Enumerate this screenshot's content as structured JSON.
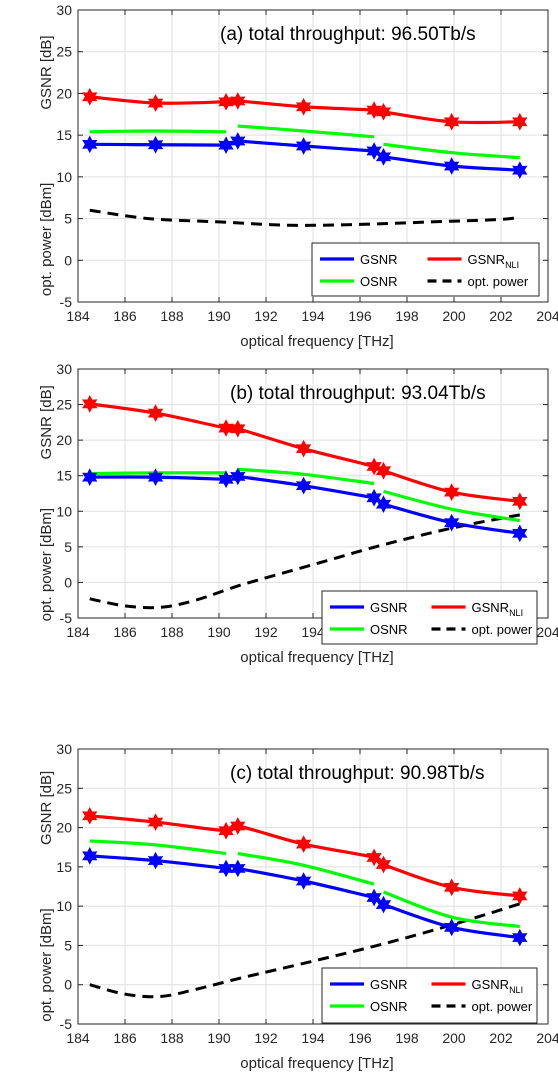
{
  "chart_data": [
    {
      "type": "line",
      "title": "(a) total throughput: 96.50Tb/s",
      "xlabel": "optical frequency [THz]",
      "ylabel_top": "GSNR [dB]",
      "ylabel_bottom": "opt. power [dBm]",
      "xlim": [
        184,
        204
      ],
      "ylim": [
        -5,
        30
      ],
      "xticks": [
        "184",
        "186",
        "188",
        "190",
        "192",
        "194",
        "196",
        "198",
        "200",
        "202",
        "204"
      ],
      "yticks": [
        "-5",
        "0",
        "5",
        "10",
        "15",
        "20",
        "25",
        "30"
      ],
      "grid": true,
      "legend_position": "lower-right",
      "legend": [
        {
          "label": "GSNR",
          "sub": "",
          "color": "#0000ff",
          "dash": false
        },
        {
          "label": "GSNR",
          "sub": "NLI",
          "color": "#ff0000",
          "dash": false
        },
        {
          "label": "OSNR",
          "sub": "",
          "color": "#00ff00",
          "dash": false
        },
        {
          "label": "opt. power",
          "sub": "",
          "color": "#000000",
          "dash": true
        }
      ],
      "series": [
        {
          "name": "GSNR",
          "color": "#0000ff",
          "segments": [
            [
              [
                184.5,
                13.9
              ],
              [
                187.3,
                13.85
              ],
              [
                190.3,
                13.8
              ]
            ],
            [
              [
                190.8,
                14.3
              ],
              [
                193.6,
                13.7
              ],
              [
                196.6,
                13.1
              ]
            ],
            [
              [
                197.0,
                12.4
              ],
              [
                199.9,
                11.3
              ],
              [
                202.8,
                10.8
              ]
            ]
          ],
          "markers": [
            [
              184.5,
              13.9
            ],
            [
              187.3,
              13.85
            ],
            [
              190.3,
              13.8
            ],
            [
              190.8,
              14.3
            ],
            [
              193.6,
              13.7
            ],
            [
              196.6,
              13.1
            ],
            [
              197.0,
              12.4
            ],
            [
              199.9,
              11.3
            ],
            [
              202.8,
              10.8
            ]
          ]
        },
        {
          "name": "GSNR_NLI",
          "color": "#ff0000",
          "segments": [
            [
              [
                184.5,
                19.6
              ],
              [
                187.3,
                18.85
              ],
              [
                190.3,
                19.0
              ],
              [
                190.8,
                19.1
              ],
              [
                193.6,
                18.4
              ],
              [
                196.6,
                18.0
              ],
              [
                197.0,
                17.8
              ],
              [
                199.9,
                16.6
              ],
              [
                202.8,
                16.6
              ]
            ]
          ],
          "markers": [
            [
              184.5,
              19.6
            ],
            [
              187.3,
              18.85
            ],
            [
              190.3,
              19.0
            ],
            [
              190.8,
              19.1
            ],
            [
              193.6,
              18.4
            ],
            [
              196.6,
              18.0
            ],
            [
              197.0,
              17.8
            ],
            [
              199.9,
              16.6
            ],
            [
              202.8,
              16.6
            ]
          ]
        },
        {
          "name": "OSNR",
          "color": "#00ff00",
          "segments": [
            [
              [
                184.5,
                15.4
              ],
              [
                187.3,
                15.5
              ],
              [
                190.3,
                15.4
              ]
            ],
            [
              [
                190.8,
                16.1
              ],
              [
                193.6,
                15.5
              ],
              [
                196.6,
                14.8
              ]
            ],
            [
              [
                197.0,
                13.9
              ],
              [
                199.9,
                12.9
              ],
              [
                202.8,
                12.3
              ]
            ]
          ],
          "markers": []
        },
        {
          "name": "opt. power",
          "color": "#000000",
          "dashed": true,
          "segments": [
            [
              [
                184.5,
                6.0
              ],
              [
                187,
                5.0
              ],
              [
                190,
                4.6
              ],
              [
                193,
                4.2
              ],
              [
                196,
                4.3
              ],
              [
                199,
                4.6
              ],
              [
                202,
                4.9
              ],
              [
                202.8,
                5.2
              ]
            ]
          ],
          "markers": []
        }
      ]
    },
    {
      "type": "line",
      "title": "(b) total throughput: 93.04Tb/s",
      "xlabel": "optical frequency [THz]",
      "ylabel_top": "GSNR [dB]",
      "ylabel_bottom": "opt. power [dBm]",
      "xlim": [
        184,
        204
      ],
      "ylim": [
        -5,
        30
      ],
      "xticks": [
        "184",
        "186",
        "188",
        "190",
        "192",
        "194",
        "196",
        "198",
        "200",
        "202",
        "204"
      ],
      "yticks": [
        "-5",
        "0",
        "5",
        "10",
        "15",
        "20",
        "25",
        "30"
      ],
      "grid": true,
      "legend_position": "lower-right",
      "legend": [
        {
          "label": "GSNR",
          "sub": "",
          "color": "#0000ff",
          "dash": false
        },
        {
          "label": "GSNR",
          "sub": "NLI",
          "color": "#ff0000",
          "dash": false
        },
        {
          "label": "OSNR",
          "sub": "",
          "color": "#00ff00",
          "dash": false
        },
        {
          "label": "opt. power",
          "sub": "",
          "color": "#000000",
          "dash": true
        }
      ],
      "series": [
        {
          "name": "GSNR",
          "color": "#0000ff",
          "segments": [
            [
              [
                184.5,
                14.8
              ],
              [
                187.3,
                14.8
              ],
              [
                190.3,
                14.5
              ]
            ],
            [
              [
                190.8,
                14.9
              ],
              [
                193.6,
                13.6
              ],
              [
                196.6,
                11.9
              ]
            ],
            [
              [
                197.0,
                11.0
              ],
              [
                199.9,
                8.4
              ],
              [
                202.8,
                6.9
              ]
            ]
          ],
          "markers": [
            [
              184.5,
              14.8
            ],
            [
              187.3,
              14.8
            ],
            [
              190.3,
              14.5
            ],
            [
              190.8,
              14.9
            ],
            [
              193.6,
              13.6
            ],
            [
              196.6,
              11.9
            ],
            [
              197.0,
              11.0
            ],
            [
              199.9,
              8.4
            ],
            [
              202.8,
              6.9
            ]
          ]
        },
        {
          "name": "GSNR_NLI",
          "color": "#ff0000",
          "segments": [
            [
              [
                184.5,
                25.1
              ],
              [
                187.3,
                23.8
              ],
              [
                190.3,
                21.7
              ],
              [
                190.8,
                21.6
              ],
              [
                193.6,
                18.8
              ],
              [
                196.6,
                16.3
              ],
              [
                197.0,
                15.7
              ],
              [
                199.9,
                12.7
              ],
              [
                202.8,
                11.4
              ]
            ]
          ],
          "markers": [
            [
              184.5,
              25.1
            ],
            [
              187.3,
              23.8
            ],
            [
              190.3,
              21.7
            ],
            [
              190.8,
              21.6
            ],
            [
              193.6,
              18.8
            ],
            [
              196.6,
              16.3
            ],
            [
              197.0,
              15.7
            ],
            [
              199.9,
              12.7
            ],
            [
              202.8,
              11.4
            ]
          ]
        },
        {
          "name": "OSNR",
          "color": "#00ff00",
          "segments": [
            [
              [
                184.5,
                15.3
              ],
              [
                187.3,
                15.4
              ],
              [
                190.3,
                15.4
              ]
            ],
            [
              [
                190.8,
                15.9
              ],
              [
                193.6,
                15.2
              ],
              [
                196.6,
                13.9
              ]
            ],
            [
              [
                197.0,
                12.8
              ],
              [
                199.9,
                10.3
              ],
              [
                202.8,
                8.7
              ]
            ]
          ],
          "markers": []
        },
        {
          "name": "opt. power",
          "color": "#000000",
          "dashed": true,
          "segments": [
            [
              [
                184.5,
                -2.3
              ],
              [
                186,
                -3.3
              ],
              [
                187.5,
                -3.5
              ],
              [
                189,
                -2.5
              ],
              [
                191,
                -0.3
              ],
              [
                194,
                2.5
              ],
              [
                197,
                5.3
              ],
              [
                200,
                7.7
              ],
              [
                202.8,
                9.5
              ]
            ]
          ],
          "markers": []
        }
      ]
    },
    {
      "type": "line",
      "title": "(c) total throughput: 90.98Tb/s",
      "xlabel": "optical frequency [THz]",
      "ylabel_top": "GSNR [dB]",
      "ylabel_bottom": "opt. power [dBm]",
      "xlim": [
        184,
        204
      ],
      "ylim": [
        -5,
        30
      ],
      "xticks": [
        "184",
        "186",
        "188",
        "190",
        "192",
        "194",
        "196",
        "198",
        "200",
        "202",
        "204"
      ],
      "yticks": [
        "-5",
        "0",
        "5",
        "10",
        "15",
        "20",
        "25",
        "30"
      ],
      "grid": true,
      "legend_position": "lower-right",
      "legend": [
        {
          "label": "GSNR",
          "sub": "",
          "color": "#0000ff",
          "dash": false
        },
        {
          "label": "GSNR",
          "sub": "NLI",
          "color": "#ff0000",
          "dash": false
        },
        {
          "label": "OSNR",
          "sub": "",
          "color": "#00ff00",
          "dash": false
        },
        {
          "label": "opt. power",
          "sub": "",
          "color": "#000000",
          "dash": true
        }
      ],
      "series": [
        {
          "name": "GSNR",
          "color": "#0000ff",
          "segments": [
            [
              [
                184.5,
                16.4
              ],
              [
                187.3,
                15.8
              ],
              [
                190.3,
                14.8
              ]
            ],
            [
              [
                190.8,
                14.8
              ],
              [
                193.6,
                13.2
              ],
              [
                196.6,
                11.1
              ]
            ],
            [
              [
                197.0,
                10.2
              ],
              [
                199.9,
                7.3
              ],
              [
                202.8,
                6.0
              ]
            ]
          ],
          "markers": [
            [
              184.5,
              16.4
            ],
            [
              187.3,
              15.8
            ],
            [
              190.3,
              14.8
            ],
            [
              190.8,
              14.8
            ],
            [
              193.6,
              13.2
            ],
            [
              196.6,
              11.1
            ],
            [
              197.0,
              10.2
            ],
            [
              199.9,
              7.3
            ],
            [
              202.8,
              6.0
            ]
          ]
        },
        {
          "name": "GSNR_NLI",
          "color": "#ff0000",
          "segments": [
            [
              [
                184.5,
                21.5
              ],
              [
                187.3,
                20.7
              ],
              [
                190.3,
                19.6
              ],
              [
                190.8,
                20.2
              ],
              [
                193.6,
                17.9
              ],
              [
                196.6,
                16.2
              ],
              [
                197.0,
                15.3
              ],
              [
                199.9,
                12.4
              ],
              [
                202.8,
                11.3
              ]
            ]
          ],
          "markers": [
            [
              184.5,
              21.5
            ],
            [
              187.3,
              20.7
            ],
            [
              190.3,
              19.6
            ],
            [
              190.8,
              20.2
            ],
            [
              193.6,
              17.9
            ],
            [
              196.6,
              16.2
            ],
            [
              197.0,
              15.3
            ],
            [
              199.9,
              12.4
            ],
            [
              202.8,
              11.3
            ]
          ]
        },
        {
          "name": "OSNR",
          "color": "#00ff00",
          "segments": [
            [
              [
                184.5,
                18.3
              ],
              [
                187.3,
                17.8
              ],
              [
                190.3,
                16.7
              ]
            ],
            [
              [
                190.8,
                16.7
              ],
              [
                193.6,
                15.2
              ],
              [
                196.6,
                12.8
              ]
            ],
            [
              [
                197.0,
                11.8
              ],
              [
                199.9,
                8.6
              ],
              [
                202.8,
                7.4
              ]
            ]
          ],
          "markers": []
        },
        {
          "name": "opt. power",
          "color": "#000000",
          "dashed": true,
          "segments": [
            [
              [
                184.5,
                0
              ],
              [
                186,
                -1.2
              ],
              [
                187.5,
                -1.5
              ],
              [
                189,
                -0.6
              ],
              [
                191,
                0.9
              ],
              [
                194,
                3.0
              ],
              [
                197,
                5.2
              ],
              [
                200,
                7.7
              ],
              [
                202.8,
                10.3
              ]
            ]
          ],
          "markers": []
        }
      ]
    }
  ]
}
